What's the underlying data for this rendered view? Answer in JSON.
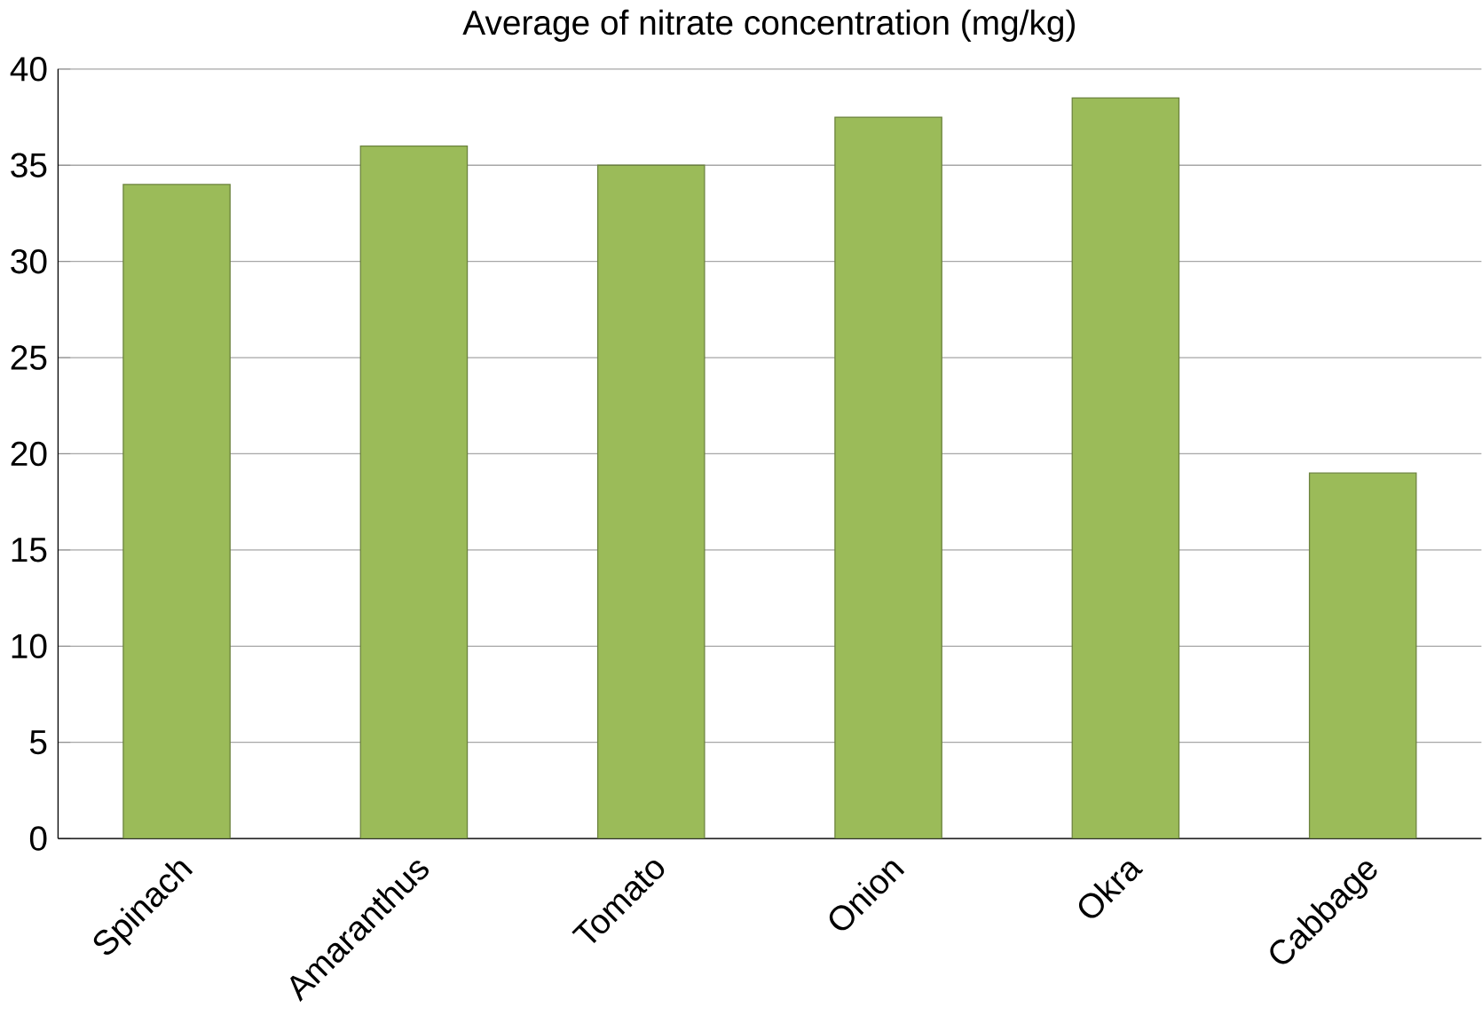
{
  "chart_data": {
    "type": "bar",
    "title": "Average of nitrate concentration (mg/kg)",
    "categories": [
      "Spinach",
      "Amaranthus",
      "Tomato",
      "Onion",
      "Okra",
      "Cabbage"
    ],
    "values": [
      34,
      36,
      35,
      37.5,
      38.5,
      19
    ],
    "color": "#9bbb59",
    "ylim": [
      0,
      40
    ],
    "yticks": [
      0,
      5,
      10,
      15,
      20,
      25,
      30,
      35,
      40
    ],
    "grid": "y"
  }
}
